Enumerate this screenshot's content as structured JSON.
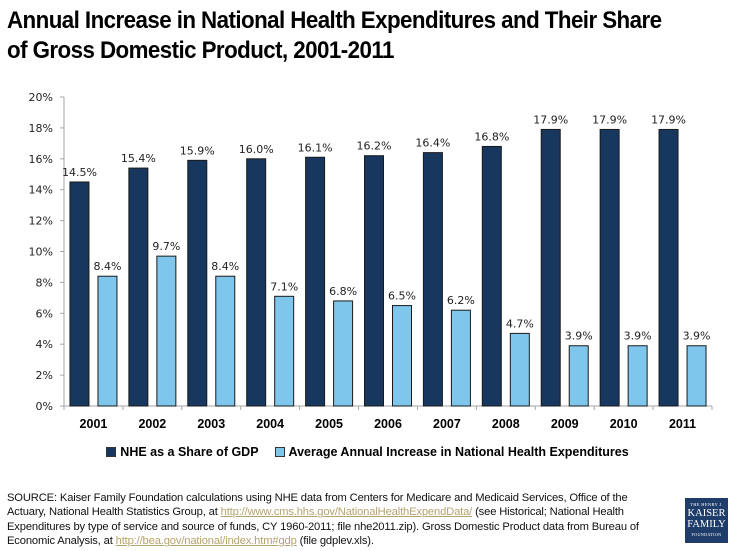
{
  "title": "Annual Increase in National Health Expenditures and Their Share of Gross Domestic Product, 2001-2011",
  "chart_data": {
    "type": "bar",
    "title": "Annual Increase in National Health Expenditures and Their Share of Gross Domestic Product, 2001-2011",
    "xlabel": "",
    "ylabel": "",
    "categories": [
      "2001",
      "2002",
      "2003",
      "2004",
      "2005",
      "2006",
      "2007",
      "2008",
      "2009",
      "2010",
      "2011"
    ],
    "series": [
      {
        "name": "NHE as a Share of GDP",
        "color": "#17375e",
        "values": [
          14.5,
          15.4,
          15.9,
          16.0,
          16.1,
          16.2,
          16.4,
          16.8,
          17.9,
          17.9,
          17.9
        ],
        "labels": [
          "14.5%",
          "15.4%",
          "15.9%",
          "16.0%",
          "16.1%",
          "16.2%",
          "16.4%",
          "16.8%",
          "17.9%",
          "17.9%",
          "17.9%"
        ]
      },
      {
        "name": "Average Annual Increase in National Health Expenditures",
        "color": "#7fc6ed",
        "values": [
          8.4,
          9.7,
          8.4,
          7.1,
          6.8,
          6.5,
          6.2,
          4.7,
          3.9,
          3.9,
          3.9
        ],
        "labels": [
          "8.4%",
          "9.7%",
          "8.4%",
          "7.1%",
          "6.8%",
          "6.5%",
          "6.2%",
          "4.7%",
          "3.9%",
          "3.9%",
          "3.9%"
        ]
      }
    ],
    "ylim": [
      0,
      20
    ],
    "yticks": [
      0,
      2,
      4,
      6,
      8,
      10,
      12,
      14,
      16,
      18,
      20
    ],
    "ytick_labels": [
      "0%",
      "2%",
      "4%",
      "6%",
      "8%",
      "10%",
      "12%",
      "14%",
      "16%",
      "18%",
      "20%"
    ],
    "grid": false,
    "legend_position": "bottom"
  },
  "legend": {
    "items": [
      {
        "label": "NHE as a Share of GDP",
        "color": "#17375e"
      },
      {
        "label": "Average Annual Increase in National Health Expenditures",
        "color": "#7fc6ed"
      }
    ]
  },
  "source": {
    "part1": "SOURCE: Kaiser Family Foundation calculations using NHE data from Centers for Medicare and Medicaid Services, Office of the Actuary, National Health Statistics Group, at ",
    "link1": "http://www.cms.hhs.gov/NationalHealthExpendData/",
    "part2": " (see Historical; National Health Expenditures by type of service and source of funds, CY 1960-2011; file nhe2011.zip). Gross Domestic Product data from Bureau of Economic Analysis, at ",
    "link2": "http://bea.gov/national/index.htm#gdp",
    "part3": " (file gdplev.xls)."
  },
  "logo": {
    "line1": "THE HENRY J.",
    "line2": "KAISER",
    "line3": "FAMILY",
    "line4": "FOUNDATION"
  }
}
